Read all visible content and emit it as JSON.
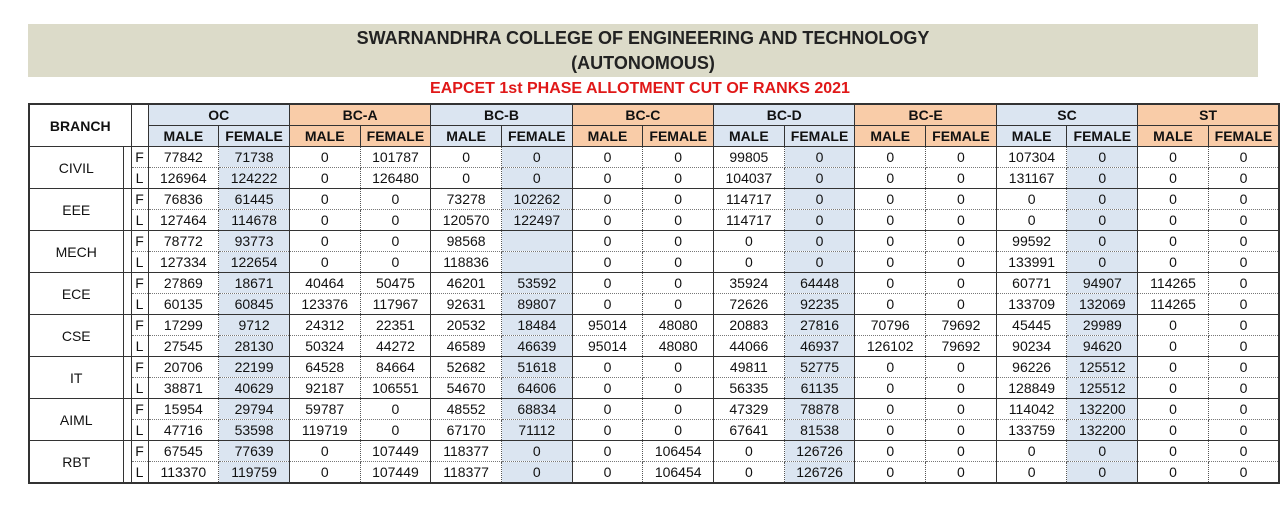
{
  "header": {
    "title_line1": "SWARNANDHRA COLLEGE OF ENGINEERING AND TECHNOLOGY",
    "title_line2": "(AUTONOMOUS)",
    "subtitle": "EAPCET 1st PHASE ALLOTMENT CUT OF RANKS 2021"
  },
  "table": {
    "branch_header": "BRANCH",
    "categories": [
      {
        "label": "OC",
        "tone": "blue"
      },
      {
        "label": "BC-A",
        "tone": "orange"
      },
      {
        "label": "BC-B",
        "tone": "blue"
      },
      {
        "label": "BC-C",
        "tone": "orange"
      },
      {
        "label": "BC-D",
        "tone": "blue"
      },
      {
        "label": "BC-E",
        "tone": "orange"
      },
      {
        "label": "SC",
        "tone": "blue"
      },
      {
        "label": "ST",
        "tone": "orange"
      }
    ],
    "gender_labels": [
      "MALE",
      "FEMALE"
    ],
    "branches": [
      {
        "name": "CIVIL",
        "rows": [
          {
            "type": "F",
            "values": [
              "77842",
              "71738",
              "0",
              "101787",
              "0",
              "0",
              "0",
              "0",
              "99805",
              "0",
              "0",
              "0",
              "107304",
              "0",
              "0",
              "0"
            ]
          },
          {
            "type": "L",
            "values": [
              "126964",
              "124222",
              "0",
              "126480",
              "0",
              "0",
              "0",
              "0",
              "104037",
              "0",
              "0",
              "0",
              "131167",
              "0",
              "0",
              "0"
            ]
          }
        ]
      },
      {
        "name": "EEE",
        "rows": [
          {
            "type": "F",
            "values": [
              "76836",
              "61445",
              "0",
              "0",
              "73278",
              "102262",
              "0",
              "0",
              "114717",
              "0",
              "0",
              "0",
              "0",
              "0",
              "0",
              "0"
            ]
          },
          {
            "type": "L",
            "values": [
              "127464",
              "114678",
              "0",
              "0",
              "120570",
              "122497",
              "0",
              "0",
              "114717",
              "0",
              "0",
              "0",
              "0",
              "0",
              "0",
              "0"
            ]
          }
        ]
      },
      {
        "name": "MECH",
        "rows": [
          {
            "type": "F",
            "values": [
              "78772",
              "93773",
              "0",
              "0",
              "98568",
              "",
              "0",
              "0",
              "0",
              "0",
              "0",
              "0",
              "99592",
              "0",
              "0",
              "0"
            ]
          },
          {
            "type": "L",
            "values": [
              "127334",
              "122654",
              "0",
              "0",
              "118836",
              "",
              "0",
              "0",
              "0",
              "0",
              "0",
              "0",
              "133991",
              "0",
              "0",
              "0"
            ]
          }
        ]
      },
      {
        "name": "ECE",
        "rows": [
          {
            "type": "F",
            "values": [
              "27869",
              "18671",
              "40464",
              "50475",
              "46201",
              "53592",
              "0",
              "0",
              "35924",
              "64448",
              "0",
              "0",
              "60771",
              "94907",
              "114265",
              "0"
            ]
          },
          {
            "type": "L",
            "values": [
              "60135",
              "60845",
              "123376",
              "117967",
              "92631",
              "89807",
              "0",
              "0",
              "72626",
              "92235",
              "0",
              "0",
              "133709",
              "132069",
              "114265",
              "0"
            ]
          }
        ]
      },
      {
        "name": "CSE",
        "rows": [
          {
            "type": "F",
            "values": [
              "17299",
              "9712",
              "24312",
              "22351",
              "20532",
              "18484",
              "95014",
              "48080",
              "20883",
              "27816",
              "70796",
              "79692",
              "45445",
              "29989",
              "0",
              "0"
            ]
          },
          {
            "type": "L",
            "values": [
              "27545",
              "28130",
              "50324",
              "44272",
              "46589",
              "46639",
              "95014",
              "48080",
              "44066",
              "46937",
              "126102",
              "79692",
              "90234",
              "94620",
              "0",
              "0"
            ]
          }
        ]
      },
      {
        "name": "IT",
        "rows": [
          {
            "type": "F",
            "values": [
              "20706",
              "22199",
              "64528",
              "84664",
              "52682",
              "51618",
              "0",
              "0",
              "49811",
              "52775",
              "0",
              "0",
              "96226",
              "125512",
              "0",
              "0"
            ]
          },
          {
            "type": "L",
            "values": [
              "38871",
              "40629",
              "92187",
              "106551",
              "54670",
              "64606",
              "0",
              "0",
              "56335",
              "61135",
              "0",
              "0",
              "128849",
              "125512",
              "0",
              "0"
            ]
          }
        ]
      },
      {
        "name": "AIML",
        "rows": [
          {
            "type": "F",
            "values": [
              "15954",
              "29794",
              "59787",
              "0",
              "48552",
              "68834",
              "0",
              "0",
              "47329",
              "78878",
              "0",
              "0",
              "114042",
              "132200",
              "0",
              "0"
            ]
          },
          {
            "type": "L",
            "values": [
              "47716",
              "53598",
              "119719",
              "0",
              "67170",
              "71112",
              "0",
              "0",
              "67641",
              "81538",
              "0",
              "0",
              "133759",
              "132200",
              "0",
              "0"
            ]
          }
        ]
      },
      {
        "name": "RBT",
        "rows": [
          {
            "type": "F",
            "values": [
              "67545",
              "77639",
              "0",
              "107449",
              "118377",
              "0",
              "0",
              "106454",
              "0",
              "126726",
              "0",
              "0",
              "0",
              "0",
              "0",
              "0"
            ]
          },
          {
            "type": "L",
            "values": [
              "113370",
              "119759",
              "0",
              "107449",
              "118377",
              "0",
              "0",
              "106454",
              "0",
              "126726",
              "0",
              "0",
              "0",
              "0",
              "0",
              "0"
            ]
          }
        ]
      }
    ]
  }
}
